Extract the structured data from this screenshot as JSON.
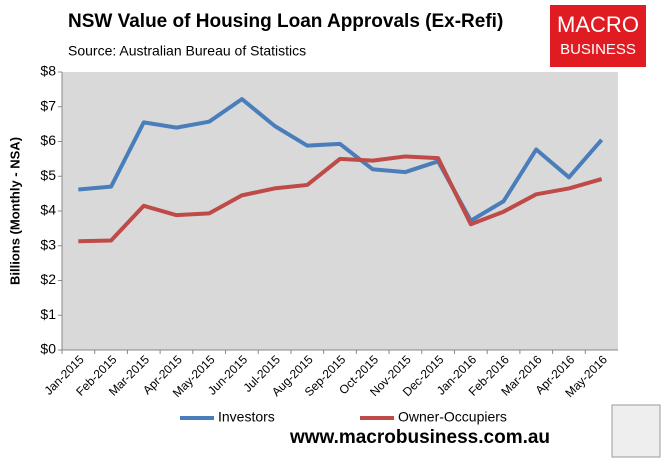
{
  "chart_data": {
    "type": "line",
    "title": "NSW Value of Housing Loan Approvals (Ex-Refi)",
    "subtitle": "Source: Australian Bureau of Statistics",
    "logo": [
      "MACRO",
      "BUSINESS"
    ],
    "y_label": "Billions (Monthly - NSA)",
    "footer": "www.macrobusiness.com.au",
    "categories": [
      "Jan-2015",
      "Feb-2015",
      "Mar-2015",
      "Apr-2015",
      "May-2015",
      "Jun-2015",
      "Jul-2015",
      "Aug-2015",
      "Sep-2015",
      "Oct-2015",
      "Nov-2015",
      "Dec-2015",
      "Jan-2016",
      "Feb-2016",
      "Mar-2016",
      "Apr-2016",
      "May-2016"
    ],
    "series": [
      {
        "name": "Investors",
        "color": "#4a7ebb",
        "values": [
          4.62,
          4.7,
          6.55,
          6.4,
          6.57,
          7.22,
          6.45,
          5.88,
          5.93,
          5.2,
          5.12,
          5.43,
          3.72,
          4.28,
          5.77,
          4.97,
          6.05
        ]
      },
      {
        "name": "Owner-Occupiers",
        "color": "#be4b48",
        "values": [
          3.13,
          3.15,
          4.15,
          3.88,
          3.93,
          4.45,
          4.65,
          4.75,
          5.5,
          5.45,
          5.57,
          5.52,
          3.62,
          3.98,
          4.48,
          4.65,
          4.92
        ]
      }
    ],
    "ylim": [
      0,
      8
    ],
    "yticks": [
      {
        "value": 0,
        "label": "$0"
      },
      {
        "value": 1,
        "label": "$1"
      },
      {
        "value": 2,
        "label": "$2"
      },
      {
        "value": 3,
        "label": "$3"
      },
      {
        "value": 4,
        "label": "$4"
      },
      {
        "value": 5,
        "label": "$5"
      },
      {
        "value": 6,
        "label": "$6"
      },
      {
        "value": 7,
        "label": "$7"
      },
      {
        "value": 8,
        "label": "$8"
      }
    ],
    "legend": "bottom"
  }
}
